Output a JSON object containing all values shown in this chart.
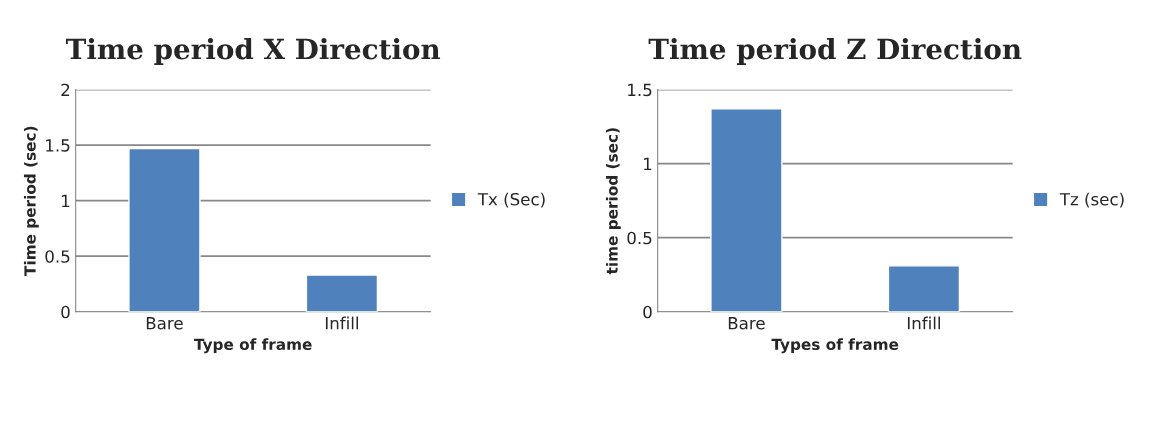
{
  "chart_data": [
    {
      "type": "bar",
      "title": "Time period X Direction",
      "xlabel": "Type of frame",
      "ylabel": "Time period (sec)",
      "categories": [
        "Bare",
        "Infill"
      ],
      "series": [
        {
          "name": "Tx (Sec)",
          "color": "#4f81bd",
          "values": [
            1.47,
            0.33
          ]
        }
      ],
      "ylim": [
        0,
        2
      ],
      "yticks": [
        0,
        0.5,
        1,
        1.5,
        2
      ],
      "grid": "y",
      "legend": "right"
    },
    {
      "type": "bar",
      "title": "Time period Z Direction",
      "xlabel": "Types of frame",
      "ylabel": "time period (sec)",
      "categories": [
        "Bare",
        "Infill"
      ],
      "series": [
        {
          "name": "Tz (sec)",
          "color": "#4f81bd",
          "values": [
            1.37,
            0.31
          ]
        }
      ],
      "ylim": [
        0,
        1.5
      ],
      "yticks": [
        0,
        0.5,
        1,
        1.5
      ],
      "grid": "y",
      "legend": "right"
    }
  ]
}
